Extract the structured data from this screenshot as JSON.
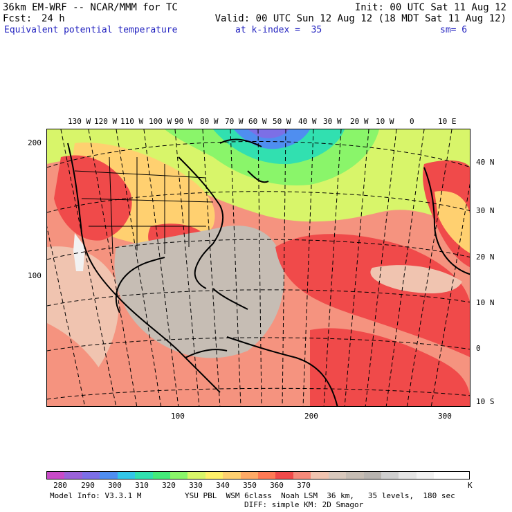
{
  "header": {
    "model": "36km EM-WRF -- NCAR/MMM for TC",
    "init": "Init: 00 UTC Sat 11 Aug 12",
    "fcst_label": "Fcst:",
    "fcst_value": "24 h",
    "valid": "Valid: 00 UTC Sun 12 Aug 12 (18 MDT Sat 11 Aug 12)",
    "field": "Equivalent potential temperature",
    "k_index": "at k-index =  35",
    "sm": "sm= 6"
  },
  "map": {
    "longitude_labels": [
      "130 W",
      "120 W",
      "110 W",
      "100 W",
      "90 W",
      "80 W",
      "70 W",
      "60 W",
      "50 W",
      "40 W",
      "30 W",
      "20 W",
      "10 W",
      "0",
      "10 E"
    ],
    "latitude_labels": [
      "40 N",
      "30 N",
      "20 N",
      "10 N",
      "0",
      "10 S"
    ],
    "grid_y_labels": [
      "200",
      "100"
    ],
    "grid_x_labels": [
      "100",
      "200",
      "300"
    ],
    "projection": "Mercator-like curved graticule (Lambert conformal view of Atlantic)"
  },
  "colorbar": {
    "labels": [
      "280",
      "290",
      "300",
      "310",
      "320",
      "330",
      "340",
      "350",
      "360",
      "370"
    ],
    "unit": "K",
    "colors": [
      "#c84bc8",
      "#9a62d8",
      "#7c6fe6",
      "#4f8ef0",
      "#33c6e8",
      "#31e0b0",
      "#44ea7a",
      "#8af56a",
      "#d8f56a",
      "#fff06a",
      "#ffd070",
      "#ffaa66",
      "#ff7a55",
      "#f04a4a",
      "#f58a7a",
      "#f0c4b0",
      "#d8c8bc",
      "#c6bdb4",
      "#b8b4b0",
      "#cfcfcf",
      "#e4e4e4",
      "#f2f2f2",
      "#ffffff",
      "#ffffff"
    ]
  },
  "footer": {
    "model_info": "Model Info: V3.3.1 M",
    "physics": "YSU PBL  WSM 6class  Noah LSM  36 km,   35 levels,  180 sec",
    "diffusion": "DIFF: simple KM: 2D Smagor"
  }
}
